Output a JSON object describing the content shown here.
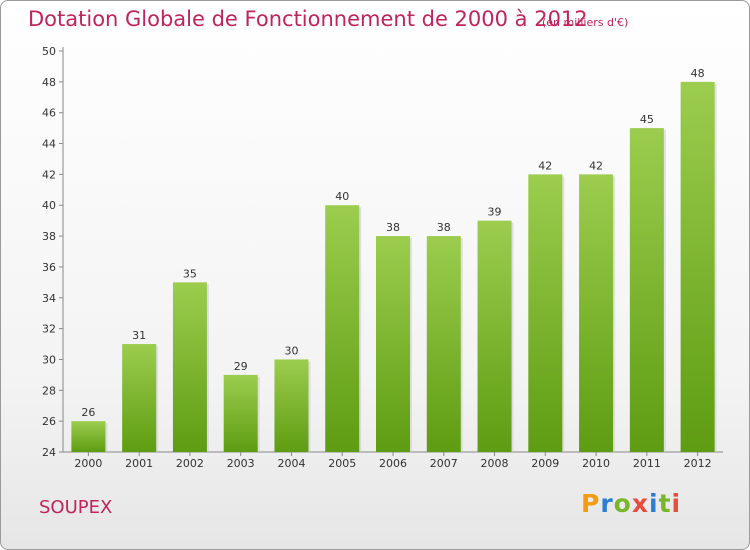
{
  "header": {
    "title": "Dotation Globale de Fonctionnement de 2000 à 2012",
    "subtitle": "(en milliers d'€)"
  },
  "footer": {
    "commune": "SOUPEX",
    "logo": {
      "text": "Proxiti",
      "colors": [
        "#f39c12",
        "#2a7fd4",
        "#7ab52a",
        "#e74c3c",
        "#2a7fd4",
        "#7ab52a",
        "#e74c3c"
      ]
    }
  },
  "chart_data": {
    "type": "bar",
    "categories": [
      "2000",
      "2001",
      "2002",
      "2003",
      "2004",
      "2005",
      "2006",
      "2007",
      "2008",
      "2009",
      "2010",
      "2011",
      "2012"
    ],
    "values": [
      26,
      31,
      35,
      29,
      30,
      40,
      38,
      38,
      39,
      42,
      42,
      45,
      48
    ],
    "title": "Dotation Globale de Fonctionnement de 2000 à 2012",
    "subtitle": "(en milliers d'€)",
    "xlabel": "",
    "ylabel": "",
    "ylim": [
      24,
      50
    ],
    "yticks": [
      24,
      26,
      28,
      30,
      32,
      34,
      36,
      38,
      40,
      42,
      44,
      46,
      48,
      50
    ],
    "grid": false,
    "legend": "none",
    "bar_color_top": "#9ccd4e",
    "bar_color_bottom": "#5e9c12"
  }
}
